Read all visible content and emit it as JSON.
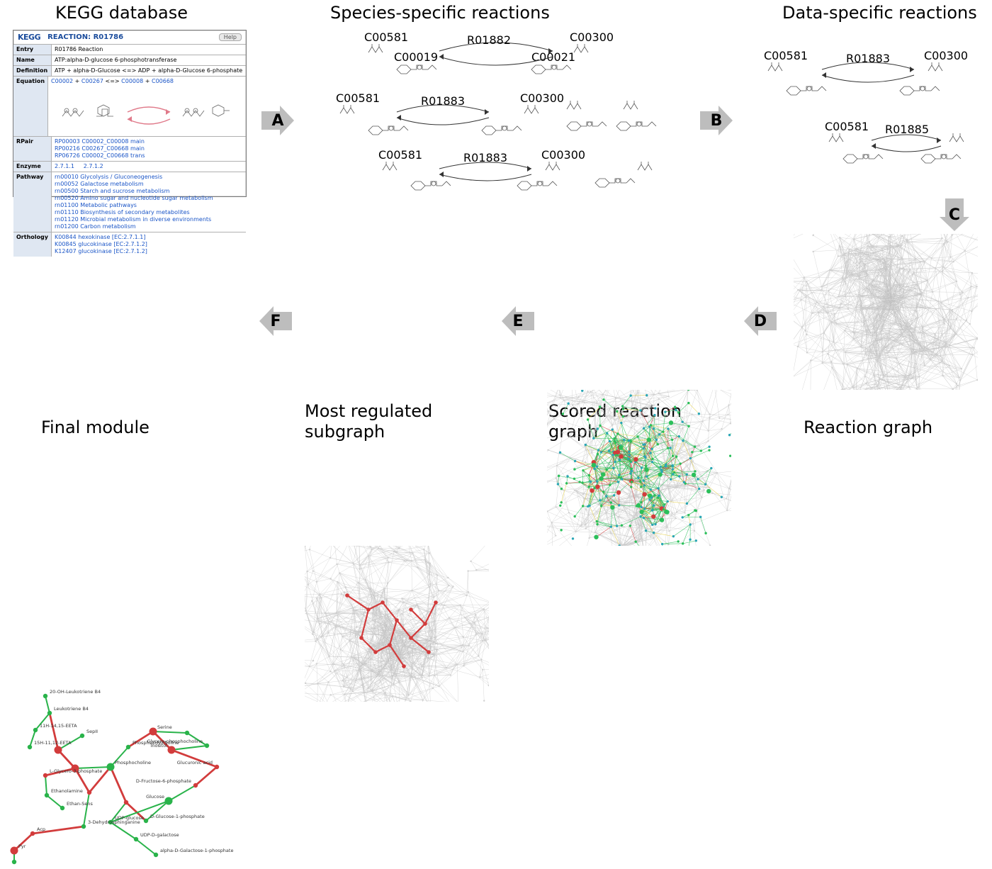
{
  "titles": {
    "kegg": "KEGG database",
    "species": "Species-specific reactions",
    "data": "Data-specific reactions"
  },
  "captions": {
    "final": "Final module",
    "subgraph_l1": "Most regulated",
    "subgraph_l2": "subgraph",
    "scored_l1": "Scored reaction",
    "scored_l2": "graph",
    "rgraph": "Reaction graph"
  },
  "arrows": {
    "A": "A",
    "B": "B",
    "C": "C",
    "D": "D",
    "E": "E",
    "F": "F",
    "fill": "#bdbdbd",
    "text": "#000000"
  },
  "kegg": {
    "logo": "KEGG",
    "headerTitle": "REACTION: R01786",
    "help": "Help",
    "rows": {
      "entry_k": "Entry",
      "entry_v": "R01786          Reaction",
      "name_k": "Name",
      "name_v": "ATP:alpha-D-glucose 6-phosphotransferase",
      "def_k": "Definition",
      "def_v": "ATP + alpha-D-Glucose <=> ADP + alpha-D-Glucose 6-phosphate",
      "eq_k": "Equation",
      "eq_l1": "C00002",
      "eq_l2": "C00267",
      "eq_op": " <=> ",
      "eq_r1": "C00008",
      "eq_r2": "C00668",
      "rpair_k": "RPair",
      "rpair_1": "RP00003  C00002_C00008 main",
      "rpair_2": "RP00216  C00267_C00668 main",
      "rpair_3": "RP06726  C00002_C00668 trans",
      "enzyme_k": "Enzyme",
      "enzyme_v1": "2.7.1.1",
      "enzyme_v2": "2.7.1.2",
      "pathway_k": "Pathway",
      "pw1": "rn00010  Glycolysis / Gluconeogenesis",
      "pw2": "rn00052  Galactose metabolism",
      "pw3": "rn00500  Starch and sucrose metabolism",
      "pw4": "rn00520  Amino sugar and nucleotide sugar metabolism",
      "pw5": "rn01100  Metabolic pathways",
      "pw6": "rn01110  Biosynthesis of secondary metabolites",
      "pw7": "rn01120  Microbial metabolism in diverse environments",
      "pw8": "rn01200  Carbon metabolism",
      "orth_k": "Orthology",
      "or1": "K00844  hexokinase [EC:2.7.1.1]",
      "or2": "K00845  glucokinase [EC:2.7.1.2]",
      "or3": "K12407  glucokinase [EC:2.7.1.2]"
    }
  },
  "rxn_labels": {
    "c1": "C00581",
    "c2": "C00300",
    "c3": "C00581",
    "r1": "R01882",
    "r2": "R01883",
    "r3": "R01883",
    "r4": "R01883",
    "r5": "R01885",
    "d1": "C00581",
    "d2": "C00300",
    "c4": "C00019",
    "c5": "C00021"
  },
  "final_labels": {
    "a": "20-OH-Leukotriene B4",
    "b": "Leukotriene B4",
    "c": "11H-14,15-EETA",
    "d": "15H-11,12-EETA",
    "e": "Ethanolamine",
    "f": "Ethan-Sens",
    "g": "Phosphocholine",
    "h": "3-Dehydrosphinganine",
    "i": "Glucose",
    "j": "UDP-D-galactose",
    "k": "alpha-D-Galactose-1-phosphate",
    "l": "L-Glycero-3-phosphate",
    "m": "Serine",
    "n": "UDP-glucose",
    "o": "Phosphatidylcholine",
    "p": "Inositol",
    "q": "Glucuronic acid",
    "r": "Glycero-phosphocholine",
    "s": "SepII",
    "t": "D-Fructose-6-phosphate",
    "u": "D-Glucose-1-phosphate",
    "v": "Pyr",
    "w": "Acp"
  },
  "colors": {
    "net_gray": "#bfbfbf",
    "net_gray_node": "#d0d0d0",
    "scored_green": "#2bbf5a",
    "scored_teal": "#2aa6b5",
    "scored_red": "#d23c3c",
    "scored_yellow": "#e7d24c",
    "highlight_red": "#d23c3c",
    "final_green": "#29b34a",
    "final_red": "#d23c3c",
    "kegg_link": "#1a55c7",
    "kegg_keybg": "#dfe7f2",
    "mol_stroke": "#666666",
    "eq_arrow": "#e07a8a"
  }
}
